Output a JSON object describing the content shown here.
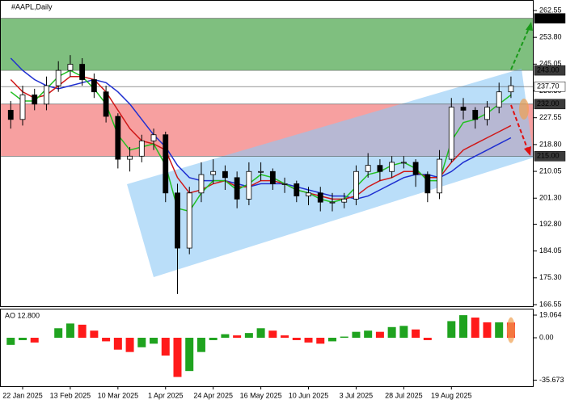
{
  "chart_data": [
    {
      "type": "candlestick",
      "title": "#AAPL,Daily",
      "categories": [
        null,
        "22 Jan 2025",
        null,
        null,
        null,
        "13 Feb 2025",
        null,
        null,
        null,
        "10 Mar 2025",
        null,
        null,
        null,
        "1 Apr 2025",
        null,
        null,
        null,
        "24 Apr 2025",
        null,
        null,
        null,
        "16 May 2025",
        null,
        null,
        null,
        "10 Jun 2025",
        null,
        null,
        null,
        "3 Jul 2025",
        null,
        null,
        null,
        "28 Jul 2025",
        null,
        null,
        null,
        "19 Aug 2025",
        null,
        null,
        null,
        null,
        null
      ],
      "open": [
        230,
        227,
        235,
        232,
        238,
        243,
        245,
        240,
        236,
        228,
        214,
        215,
        220,
        222,
        203,
        185,
        203,
        209,
        210,
        208,
        201,
        210,
        210,
        206,
        206,
        202,
        203,
        200,
        200,
        201,
        210,
        212,
        210,
        213,
        213,
        209,
        203,
        214,
        231,
        230,
        227,
        231,
        236
      ],
      "high": [
        233,
        238,
        237,
        241,
        246,
        248,
        247,
        242,
        238,
        229,
        218,
        222,
        224,
        223,
        206,
        205,
        213,
        214,
        212,
        210,
        213,
        213,
        211,
        208,
        207,
        205,
        205,
        203,
        203,
        212,
        216,
        214,
        215,
        215,
        214,
        210,
        217,
        234,
        234,
        231,
        233,
        239,
        241
      ],
      "low": [
        224,
        225,
        230,
        230,
        236,
        241,
        238,
        234,
        226,
        211,
        210,
        213,
        217,
        200,
        170,
        183,
        200,
        206,
        204,
        198,
        199,
        207,
        204,
        203,
        200,
        199,
        197,
        197,
        198,
        199,
        208,
        207,
        208,
        211,
        205,
        200,
        201,
        213,
        227,
        224,
        225,
        229,
        234
      ],
      "close": [
        227,
        235,
        232,
        238,
        243,
        245,
        240,
        236,
        228,
        214,
        215,
        220,
        222,
        203,
        185,
        203,
        209,
        210,
        208,
        201,
        210,
        210,
        206,
        206,
        202,
        203,
        200,
        200,
        201,
        210,
        212,
        210,
        213,
        213,
        209,
        203,
        214,
        231,
        230,
        227,
        231,
        236,
        238
      ],
      "up_color": "#ffffff",
      "down_color": "#000000",
      "series": [
        {
          "color": "#1f2fd0",
          "values": [
            247,
            243,
            240,
            238,
            237,
            238,
            239,
            240,
            239,
            236,
            232,
            227,
            222,
            218,
            212,
            208,
            207,
            207,
            207,
            206,
            205,
            206,
            206,
            206,
            205,
            204,
            203,
            202,
            202,
            201,
            202,
            204,
            206,
            208,
            209,
            209,
            208,
            210,
            213,
            215,
            217,
            219,
            221
          ]
        },
        {
          "color": "#d01818",
          "values": [
            240,
            236,
            234,
            235,
            238,
            241,
            241,
            240,
            236,
            230,
            224,
            220,
            219,
            217,
            208,
            203,
            204,
            206,
            207,
            205,
            205,
            207,
            207,
            206,
            204,
            203,
            202,
            201,
            201,
            202,
            205,
            207,
            208,
            210,
            210,
            208,
            208,
            213,
            217,
            219,
            221,
            223,
            225
          ]
        },
        {
          "color": "#22c022",
          "values": [
            236,
            233,
            233,
            237,
            241,
            243,
            241,
            237,
            232,
            222,
            217,
            218,
            219,
            212,
            198,
            197,
            203,
            207,
            207,
            204,
            206,
            209,
            208,
            206,
            204,
            203,
            201,
            200,
            201,
            205,
            209,
            210,
            212,
            213,
            211,
            207,
            207,
            220,
            226,
            227,
            229,
            232,
            235
          ]
        }
      ],
      "levels": [
        {
          "value": 260,
          "label": "260.00"
        },
        {
          "value": 243,
          "label": "243.00"
        },
        {
          "value": 237.7,
          "label": "237.70"
        },
        {
          "value": 232,
          "label": "232.00"
        },
        {
          "value": 215,
          "label": "215.00"
        }
      ],
      "ylim": [
        165.76,
        265.98
      ],
      "yticks": [
        262.55,
        {
          "value": 253.8,
          "label": "253.80"
        },
        245.05,
        {
          "value": 236.3,
          "label": "236.30"
        },
        227.55,
        {
          "value": 218.8,
          "label": "218.80"
        },
        210.05,
        {
          "value": 201.3,
          "label": "201.30"
        },
        {
          "value": 192.8,
          "label": "192.80"
        },
        184.05,
        {
          "value": 175.3,
          "label": "175.30"
        },
        166.55
      ]
    },
    {
      "type": "bar",
      "title": "AO 12.800",
      "values": [
        -6,
        -2,
        -4,
        0,
        8,
        12,
        11,
        6,
        -3,
        -10,
        -12,
        -8,
        -5,
        -15,
        -33,
        -28,
        -12,
        -2,
        3,
        2,
        4,
        8,
        6,
        2,
        -2,
        -4,
        -5,
        -3,
        1,
        5,
        6,
        5,
        9,
        10,
        7,
        -2,
        0,
        14,
        19,
        17,
        13,
        13,
        12.8
      ],
      "up_color": "#1fa31f",
      "down_color": "#ff1a1a",
      "ylim": [
        -40.8,
        24.5
      ],
      "yticks": [
        19.064,
        {
          "value": 0,
          "label": "0.00"
        },
        -35.673
      ]
    }
  ]
}
